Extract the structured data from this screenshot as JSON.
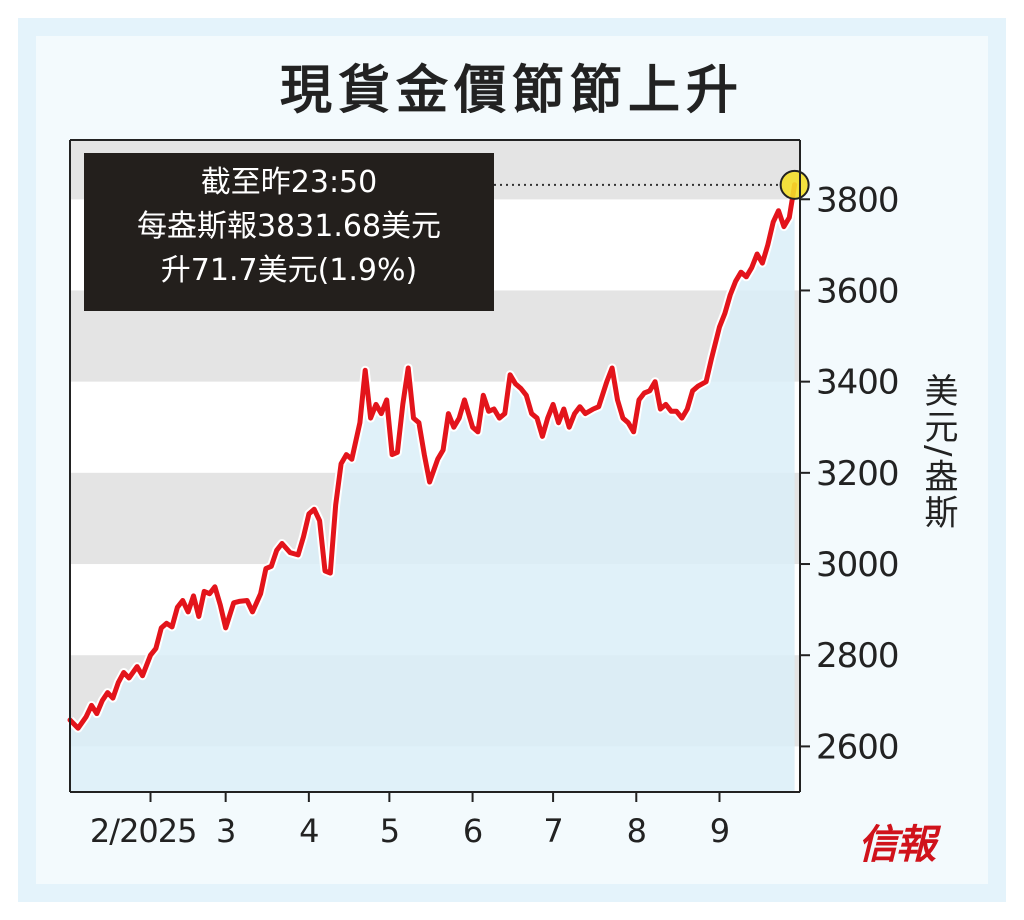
{
  "title": "現貨金價節節上升",
  "annotation": {
    "line1": "截至昨23:50",
    "line2": "每盎斯報3831.68美元",
    "line3": "升71.7美元(1.9%)"
  },
  "source": "信報",
  "colors": {
    "line": "#e3141b",
    "area": "#dbeef8",
    "band_gray": "#e4e4e4",
    "band_white": "#ffffff",
    "marker": "#f4df2a",
    "box": "#231f1c"
  },
  "chart_data": {
    "type": "line",
    "title": "現貨金價節節上升",
    "ylabel": "美元/盎斯",
    "ylim": [
      2500,
      3930
    ],
    "yticks": [
      2600,
      2800,
      3000,
      3200,
      3400,
      3600,
      3800
    ],
    "xticks": [
      {
        "label": "2/2025",
        "date": "2025-02-01"
      },
      {
        "label": "3",
        "date": "2025-03-01"
      },
      {
        "label": "4",
        "date": "2025-04-01"
      },
      {
        "label": "5",
        "date": "2025-05-01"
      },
      {
        "label": "6",
        "date": "2025-06-01"
      },
      {
        "label": "7",
        "date": "2025-07-01"
      },
      {
        "label": "8",
        "date": "2025-08-01"
      },
      {
        "label": "9",
        "date": "2025-09-01"
      }
    ],
    "xlim": [
      "2025-01-02",
      "2025-10-01"
    ],
    "grid": "alternating horizontal bands",
    "series": [
      {
        "values": [
          [
            "2025-01-02",
            2658
          ],
          [
            "2025-01-05",
            2640
          ],
          [
            "2025-01-08",
            2665
          ],
          [
            "2025-01-10",
            2690
          ],
          [
            "2025-01-12",
            2672
          ],
          [
            "2025-01-14",
            2700
          ],
          [
            "2025-01-16",
            2718
          ],
          [
            "2025-01-18",
            2706
          ],
          [
            "2025-01-20",
            2740
          ],
          [
            "2025-01-22",
            2762
          ],
          [
            "2025-01-24",
            2750
          ],
          [
            "2025-01-27",
            2775
          ],
          [
            "2025-01-29",
            2755
          ],
          [
            "2025-02-01",
            2800
          ],
          [
            "2025-02-03",
            2815
          ],
          [
            "2025-02-05",
            2860
          ],
          [
            "2025-02-07",
            2870
          ],
          [
            "2025-02-09",
            2862
          ],
          [
            "2025-02-11",
            2905
          ],
          [
            "2025-02-13",
            2920
          ],
          [
            "2025-02-15",
            2895
          ],
          [
            "2025-02-17",
            2930
          ],
          [
            "2025-02-19",
            2885
          ],
          [
            "2025-02-21",
            2940
          ],
          [
            "2025-02-23",
            2935
          ],
          [
            "2025-02-25",
            2950
          ],
          [
            "2025-02-27",
            2910
          ],
          [
            "2025-03-01",
            2860
          ],
          [
            "2025-03-04",
            2915
          ],
          [
            "2025-03-06",
            2918
          ],
          [
            "2025-03-09",
            2920
          ],
          [
            "2025-03-11",
            2895
          ],
          [
            "2025-03-14",
            2935
          ],
          [
            "2025-03-16",
            2990
          ],
          [
            "2025-03-18",
            2995
          ],
          [
            "2025-03-20",
            3030
          ],
          [
            "2025-03-22",
            3045
          ],
          [
            "2025-03-25",
            3025
          ],
          [
            "2025-03-28",
            3020
          ],
          [
            "2025-03-30",
            3060
          ],
          [
            "2025-04-01",
            3110
          ],
          [
            "2025-04-03",
            3120
          ],
          [
            "2025-04-05",
            3095
          ],
          [
            "2025-04-07",
            2985
          ],
          [
            "2025-04-09",
            2980
          ],
          [
            "2025-04-11",
            3130
          ],
          [
            "2025-04-13",
            3220
          ],
          [
            "2025-04-15",
            3240
          ],
          [
            "2025-04-17",
            3230
          ],
          [
            "2025-04-20",
            3310
          ],
          [
            "2025-04-22",
            3425
          ],
          [
            "2025-04-24",
            3320
          ],
          [
            "2025-04-26",
            3350
          ],
          [
            "2025-04-28",
            3330
          ],
          [
            "2025-04-30",
            3360
          ],
          [
            "2025-05-02",
            3240
          ],
          [
            "2025-05-04",
            3245
          ],
          [
            "2025-05-06",
            3350
          ],
          [
            "2025-05-08",
            3430
          ],
          [
            "2025-05-10",
            3320
          ],
          [
            "2025-05-12",
            3310
          ],
          [
            "2025-05-14",
            3240
          ],
          [
            "2025-05-16",
            3180
          ],
          [
            "2025-05-19",
            3230
          ],
          [
            "2025-05-21",
            3250
          ],
          [
            "2025-05-23",
            3330
          ],
          [
            "2025-05-25",
            3300
          ],
          [
            "2025-05-27",
            3320
          ],
          [
            "2025-05-29",
            3360
          ],
          [
            "2025-06-01",
            3300
          ],
          [
            "2025-06-03",
            3290
          ],
          [
            "2025-06-05",
            3370
          ],
          [
            "2025-06-07",
            3335
          ],
          [
            "2025-06-09",
            3340
          ],
          [
            "2025-06-11",
            3320
          ],
          [
            "2025-06-13",
            3330
          ],
          [
            "2025-06-15",
            3415
          ],
          [
            "2025-06-17",
            3395
          ],
          [
            "2025-06-19",
            3385
          ],
          [
            "2025-06-21",
            3370
          ],
          [
            "2025-06-23",
            3330
          ],
          [
            "2025-06-25",
            3320
          ],
          [
            "2025-06-27",
            3280
          ],
          [
            "2025-06-29",
            3320
          ],
          [
            "2025-07-01",
            3350
          ],
          [
            "2025-07-03",
            3310
          ],
          [
            "2025-07-05",
            3340
          ],
          [
            "2025-07-07",
            3300
          ],
          [
            "2025-07-09",
            3330
          ],
          [
            "2025-07-11",
            3345
          ],
          [
            "2025-07-13",
            3330
          ],
          [
            "2025-07-16",
            3340
          ],
          [
            "2025-07-18",
            3345
          ],
          [
            "2025-07-21",
            3400
          ],
          [
            "2025-07-23",
            3430
          ],
          [
            "2025-07-25",
            3360
          ],
          [
            "2025-07-27",
            3320
          ],
          [
            "2025-07-29",
            3310
          ],
          [
            "2025-07-31",
            3290
          ],
          [
            "2025-08-02",
            3360
          ],
          [
            "2025-08-04",
            3375
          ],
          [
            "2025-08-06",
            3380
          ],
          [
            "2025-08-08",
            3400
          ],
          [
            "2025-08-10",
            3340
          ],
          [
            "2025-08-12",
            3350
          ],
          [
            "2025-08-14",
            3335
          ],
          [
            "2025-08-16",
            3335
          ],
          [
            "2025-08-18",
            3320
          ],
          [
            "2025-08-20",
            3340
          ],
          [
            "2025-08-22",
            3380
          ],
          [
            "2025-08-24",
            3390
          ],
          [
            "2025-08-27",
            3400
          ],
          [
            "2025-08-29",
            3450
          ],
          [
            "2025-09-01",
            3520
          ],
          [
            "2025-09-03",
            3550
          ],
          [
            "2025-09-05",
            3590
          ],
          [
            "2025-09-07",
            3620
          ],
          [
            "2025-09-09",
            3640
          ],
          [
            "2025-09-11",
            3630
          ],
          [
            "2025-09-13",
            3650
          ],
          [
            "2025-09-15",
            3680
          ],
          [
            "2025-09-17",
            3660
          ],
          [
            "2025-09-19",
            3700
          ],
          [
            "2025-09-21",
            3750
          ],
          [
            "2025-09-23",
            3775
          ],
          [
            "2025-09-25",
            3740
          ],
          [
            "2025-09-27",
            3760
          ],
          [
            "2025-09-29",
            3832
          ]
        ]
      }
    ],
    "highlight_point": {
      "date": "2025-09-29",
      "value": 3831.68
    }
  }
}
